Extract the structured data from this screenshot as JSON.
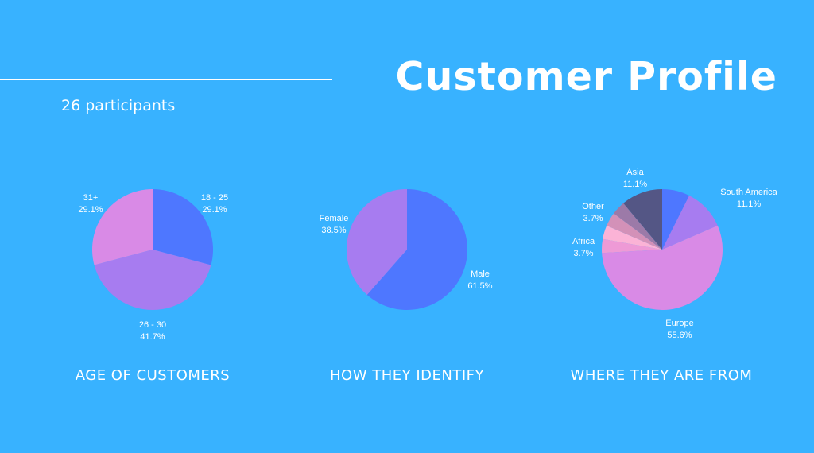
{
  "header": {
    "title": "Customer Profile",
    "subtitle": "26 participants"
  },
  "chart_data": [
    {
      "type": "pie",
      "title": "AGE OF CUSTOMERS",
      "slices": [
        {
          "label": "18 - 25",
          "value": 29.1,
          "value_text": "29.1%",
          "color": "#4e77ff"
        },
        {
          "label": "26 - 30",
          "value": 41.7,
          "value_text": "41.7%",
          "color": "#a77cf0"
        },
        {
          "label": "31+",
          "value": 29.1,
          "value_text": "29.1%",
          "color": "#d98ae6"
        }
      ]
    },
    {
      "type": "pie",
      "title": "HOW THEY IDENTIFY",
      "slices": [
        {
          "label": "Male",
          "value": 61.5,
          "value_text": "61.5%",
          "color": "#4e77ff"
        },
        {
          "label": "Female",
          "value": 38.5,
          "value_text": "38.5%",
          "color": "#a77cf0"
        }
      ]
    },
    {
      "type": "pie",
      "title": "WHERE THEY ARE FROM",
      "slices": [
        {
          "label": "",
          "value": 7.4,
          "value_text": "",
          "color": "#4e77ff"
        },
        {
          "label": "South America",
          "value": 11.1,
          "value_text": "11.1%",
          "color": "#a77cf0"
        },
        {
          "label": "Europe",
          "value": 55.6,
          "value_text": "55.6%",
          "color": "#d98ae6"
        },
        {
          "label": "",
          "value": 3.7,
          "value_text": "",
          "color": "#ee9ad6"
        },
        {
          "label": "Africa",
          "value": 3.7,
          "value_text": "3.7%",
          "color": "#fbb3d6"
        },
        {
          "label": "",
          "value": 3.7,
          "value_text": "",
          "color": "#d391b8"
        },
        {
          "label": "Other",
          "value": 3.7,
          "value_text": "3.7%",
          "color": "#9c7aa8"
        },
        {
          "label": "Asia",
          "value": 11.1,
          "value_text": "11.1%",
          "color": "#545685"
        }
      ]
    }
  ]
}
